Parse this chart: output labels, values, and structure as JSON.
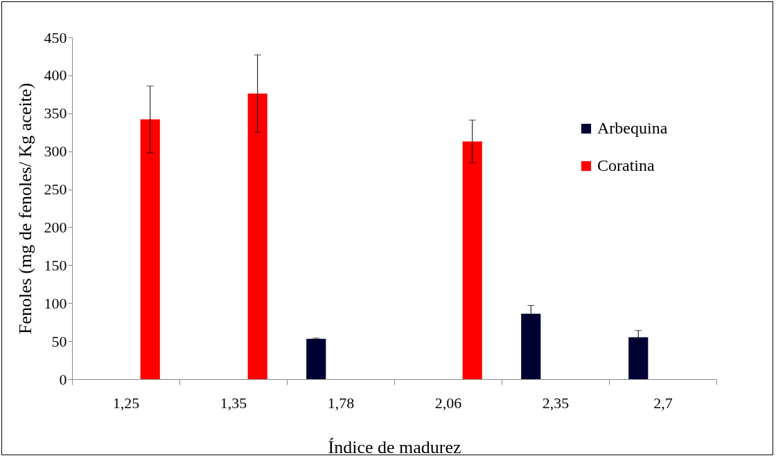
{
  "chart_data": {
    "type": "bar",
    "xlabel": "Índice de madurez",
    "ylabel": "Fenoles (mg de fenoles/ Kg aceite)",
    "categories": [
      "1,25",
      "1,35",
      "1,78",
      "2,06",
      "2,35",
      "2,7"
    ],
    "series": [
      {
        "name": "Arbequina",
        "color": "#000033",
        "values": [
          null,
          null,
          53,
          null,
          86,
          55
        ],
        "errors": [
          null,
          null,
          1,
          null,
          11,
          9
        ]
      },
      {
        "name": "Coratina",
        "color": "#ff0000",
        "values": [
          342,
          376,
          null,
          313,
          null,
          null
        ],
        "errors": [
          44,
          51,
          null,
          28,
          null,
          null
        ]
      }
    ],
    "ylim": [
      0,
      450
    ],
    "yticks": [
      0,
      50,
      100,
      150,
      200,
      250,
      300,
      350,
      400,
      450
    ],
    "grid": false,
    "legend": "right"
  }
}
